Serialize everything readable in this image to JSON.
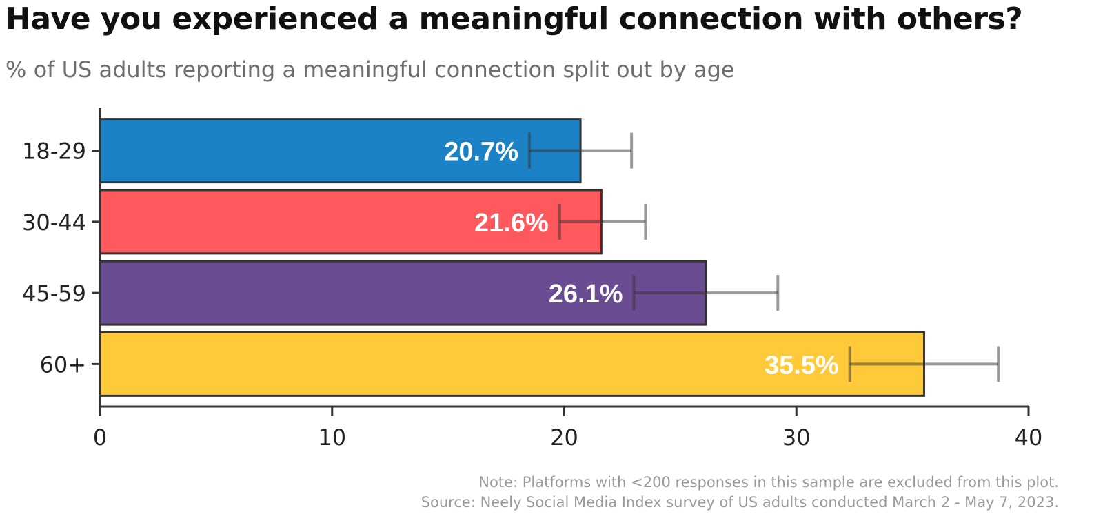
{
  "title": "Have you experienced a meaningful connection with others?",
  "subtitle": "% of US adults reporting a meaningful connection split out by age",
  "notes": {
    "note": "Note: Platforms with <200 responses in this sample are excluded from this plot.",
    "source": "Source: Neely Social Media Index survey of US adults conducted March 2 - May 7, 2023."
  },
  "chart_data": {
    "type": "bar",
    "orientation": "horizontal",
    "title": "Have you experienced a meaningful connection with others?",
    "subtitle": "% of US adults reporting a meaningful connection split out by age",
    "xlabel": "",
    "ylabel": "",
    "categories": [
      "18-29",
      "30-44",
      "45-59",
      "60+"
    ],
    "values": [
      20.7,
      21.6,
      26.1,
      35.5
    ],
    "data_labels": [
      "20.7%",
      "21.6%",
      "26.1%",
      "35.5%"
    ],
    "error_low": [
      18.5,
      19.8,
      23.0,
      32.3
    ],
    "error_high": [
      22.9,
      23.5,
      29.2,
      38.7
    ],
    "colors": [
      "#1b82c5",
      "#ff585d",
      "#6a4c93",
      "#ffca3a"
    ],
    "xlim": [
      0,
      40
    ],
    "xticks": [
      0,
      10,
      20,
      30,
      40
    ],
    "grid": false,
    "legend": "none"
  }
}
